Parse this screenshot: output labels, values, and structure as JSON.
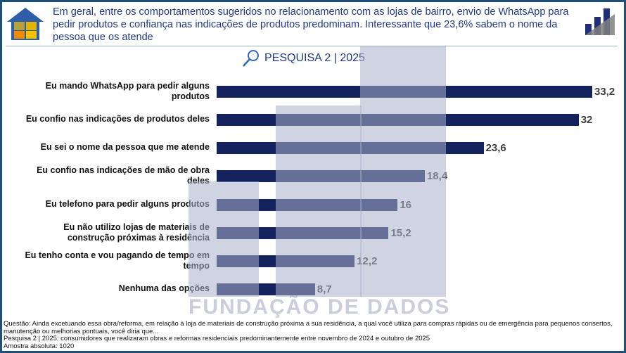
{
  "header": {
    "text": "Em geral, entre os comportamentos sugeridos no relacionamento com as lojas de bairro, envio de WhatsApp para pedir produtos e confiança nas indicações de produtos predominam. Interessante que 23,6% sabem o nome da pessoa que os atende"
  },
  "survey_label": "PESQUISA 2 | 2025",
  "watermark": "FUNDAÇÃO DE DADOS",
  "logo_text": "FUNDAÇÃO DE DADOS",
  "colors": {
    "bar": "#14235e",
    "frame": "#1f4e79",
    "text": "#1f3a8a"
  },
  "chart_data": {
    "type": "bar",
    "orientation": "horizontal",
    "categories": [
      "Eu mando WhatsApp para pedir alguns produtos",
      "Eu confio nas indicações de produtos deles",
      "Eu sei o nome da pessoa que me atende",
      "Eu confio nas indicações de mão de obra deles",
      "Eu telefono para pedir alguns produtos",
      "Eu não utilizo lojas de materiais de construção próximas à residência",
      "Eu tenho conta e vou pagando de tempo em tempo",
      "Nenhuma das opções"
    ],
    "values": [
      33.2,
      32,
      23.6,
      18.4,
      16,
      15.2,
      12.2,
      8.7
    ],
    "value_labels": [
      "33,2",
      "32",
      "23,6",
      "18,4",
      "16",
      "15,2",
      "12,2",
      "8,7"
    ],
    "xlim": [
      0,
      34
    ]
  },
  "footer": {
    "question": "Questão: Ainda excetuando essa obra/reforma, em relação à loja de materiais de construção próxima a sua residência, a qual você utiliza para compras rápidas ou de emergência para pequenos consertos, manutenção ou melhorias pontuais, você diria que...",
    "survey": "Pesquisa 2 | 2025: consumidores que realizaram obras e reformas residenciais predominantemente entre novembro de 2024 e outubro de 2025",
    "sample": "Amostra absoluta: 1020"
  }
}
